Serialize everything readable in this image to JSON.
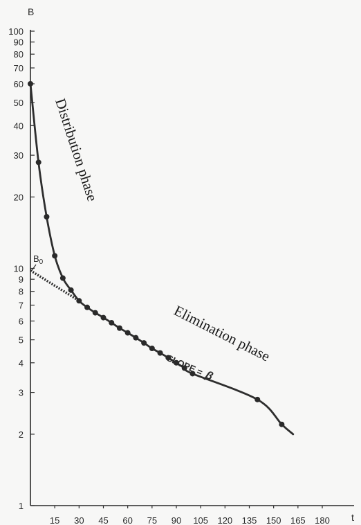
{
  "chart_data": {
    "type": "line",
    "y_scale": "log",
    "xlabel": "t",
    "ylabel": "B",
    "xlim": [
      0,
      180
    ],
    "ylim": [
      1,
      100
    ],
    "x_ticks": [
      15,
      30,
      45,
      60,
      75,
      90,
      105,
      120,
      135,
      150,
      165,
      180
    ],
    "y_ticks": [
      1,
      2,
      3,
      4,
      5,
      6,
      7,
      8,
      9,
      10,
      20,
      30,
      40,
      50,
      60,
      70,
      80,
      90,
      100
    ],
    "grid": false,
    "points": [
      {
        "x": 0,
        "y": 60
      },
      {
        "x": 5,
        "y": 28
      },
      {
        "x": 10,
        "y": 16.5
      },
      {
        "x": 15,
        "y": 11.3
      },
      {
        "x": 20,
        "y": 9.1
      },
      {
        "x": 25,
        "y": 8.1
      },
      {
        "x": 30,
        "y": 7.3
      },
      {
        "x": 35,
        "y": 6.85
      },
      {
        "x": 40,
        "y": 6.5
      },
      {
        "x": 45,
        "y": 6.2
      },
      {
        "x": 50,
        "y": 5.9
      },
      {
        "x": 55,
        "y": 5.6
      },
      {
        "x": 60,
        "y": 5.35
      },
      {
        "x": 65,
        "y": 5.1
      },
      {
        "x": 70,
        "y": 4.85
      },
      {
        "x": 75,
        "y": 4.6
      },
      {
        "x": 80,
        "y": 4.4
      },
      {
        "x": 85,
        "y": 4.2
      },
      {
        "x": 90,
        "y": 4.0
      },
      {
        "x": 95,
        "y": 3.8
      },
      {
        "x": 100,
        "y": 3.6
      },
      {
        "x": 140,
        "y": 2.8
      },
      {
        "x": 155,
        "y": 2.2
      }
    ],
    "curve_end": {
      "x": 162,
      "y": 2.0
    },
    "extrapolation": {
      "from": {
        "x": 0,
        "y": 9.8
      },
      "to": {
        "x": 30,
        "y": 7.3
      }
    },
    "annotations": {
      "distribution": "Distribution phase",
      "elimination": "Elimination phase",
      "slope_label": "SLOPE =",
      "slope_symbol": "β",
      "b0_main": "B",
      "b0_sub": "0"
    },
    "colors": {
      "curve": "#2e2e2e",
      "points": "#2a2a2a",
      "axis": "#2a2a2a"
    }
  }
}
